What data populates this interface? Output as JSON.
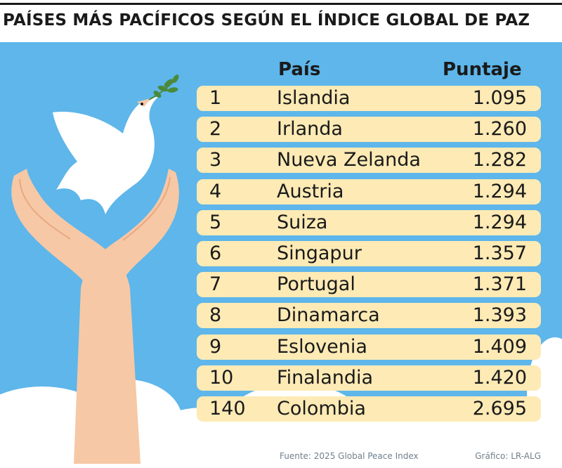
{
  "title": "PAÍSES MÁS PACÍFICOS SEGÚN EL ÍNDICE GLOBAL DE PAZ",
  "colors": {
    "background": "#5eb6ea",
    "row_fill": "#fdeab5",
    "text": "#1a1a1a"
  },
  "chart_data": {
    "type": "table",
    "title": "PAÍSES MÁS PACÍFICOS SEGÚN EL ÍNDICE GLOBAL DE PAZ",
    "columns": [
      "País",
      "Puntaje"
    ],
    "rows": [
      {
        "rank": "1",
        "country": "Islandia",
        "score": "1.095"
      },
      {
        "rank": "2",
        "country": "Irlanda",
        "score": "1.260"
      },
      {
        "rank": "3",
        "country": "Nueva Zelanda",
        "score": "1.282"
      },
      {
        "rank": "4",
        "country": "Austria",
        "score": "1.294"
      },
      {
        "rank": "5",
        "country": "Suiza",
        "score": "1.294"
      },
      {
        "rank": "6",
        "country": "Singapur",
        "score": "1.357"
      },
      {
        "rank": "7",
        "country": "Portugal",
        "score": "1.371"
      },
      {
        "rank": "8",
        "country": "Dinamarca",
        "score": "1.393"
      },
      {
        "rank": "9",
        "country": "Eslovenia",
        "score": "1.409"
      },
      {
        "rank": "10",
        "country": "Finalandia",
        "score": "1.420"
      },
      {
        "rank": "140",
        "country": "Colombia",
        "score": "2.695"
      }
    ]
  },
  "footer": {
    "source": "Fuente: 2025 Global Peace Index",
    "credit": "Gráfico: LR-ALG"
  },
  "illustration": {
    "icons": [
      "dove-icon",
      "olive-branch-icon",
      "hands-icon",
      "clouds-icon"
    ]
  }
}
